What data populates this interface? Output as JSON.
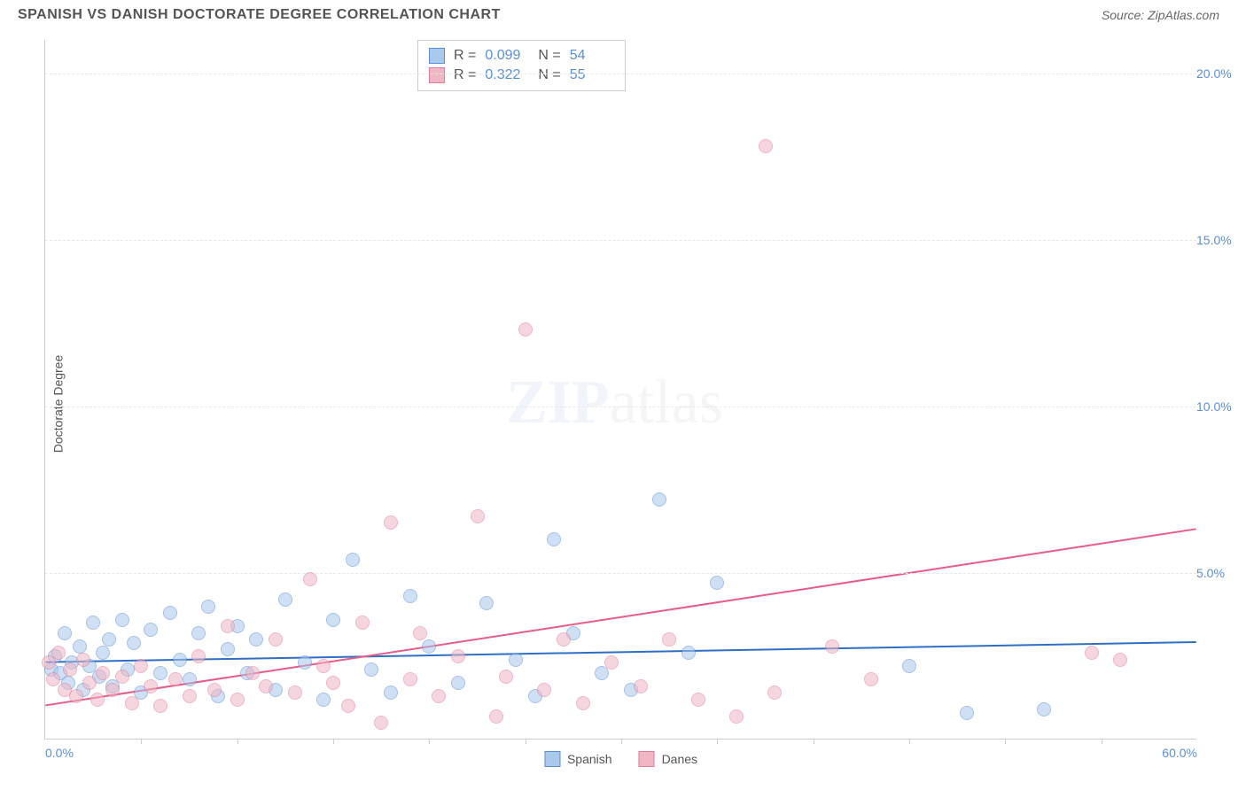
{
  "title": "SPANISH VS DANISH DOCTORATE DEGREE CORRELATION CHART",
  "source": "Source: ZipAtlas.com",
  "ylabel": "Doctorate Degree",
  "watermark": {
    "zip": "ZIP",
    "rest": "atlas"
  },
  "chart": {
    "type": "scatter",
    "xlim": [
      0,
      60
    ],
    "ylim": [
      0,
      21
    ],
    "xtick_labels": [
      "0.0%",
      "60.0%"
    ],
    "xtick_positions": [
      0,
      60
    ],
    "xtick_minor": [
      5,
      10,
      15,
      20,
      25,
      30,
      35,
      40,
      45,
      50,
      55
    ],
    "ytick_labels": [
      "5.0%",
      "10.0%",
      "15.0%",
      "20.0%"
    ],
    "ytick_positions": [
      5,
      10,
      15,
      20
    ],
    "grid_color": "#e8e8e8",
    "axis_color": "#cccccc",
    "background_color": "#ffffff",
    "point_radius": 8,
    "point_opacity": 0.55,
    "series": [
      {
        "name": "Spanish",
        "fill": "#a8c8ec",
        "stroke": "#5b8fd6",
        "trend_stroke": "#2e6fc6",
        "trend_width": 2,
        "trend_y0": 2.3,
        "trend_y1": 2.9,
        "R": "0.099",
        "N": "54",
        "points": [
          [
            0.3,
            2.1
          ],
          [
            0.5,
            2.5
          ],
          [
            0.8,
            2.0
          ],
          [
            1.0,
            3.2
          ],
          [
            1.2,
            1.7
          ],
          [
            1.4,
            2.3
          ],
          [
            1.8,
            2.8
          ],
          [
            2.0,
            1.5
          ],
          [
            2.3,
            2.2
          ],
          [
            2.5,
            3.5
          ],
          [
            2.8,
            1.9
          ],
          [
            3.0,
            2.6
          ],
          [
            3.3,
            3.0
          ],
          [
            3.5,
            1.6
          ],
          [
            4.0,
            3.6
          ],
          [
            4.3,
            2.1
          ],
          [
            4.6,
            2.9
          ],
          [
            5.0,
            1.4
          ],
          [
            5.5,
            3.3
          ],
          [
            6.0,
            2.0
          ],
          [
            6.5,
            3.8
          ],
          [
            7.0,
            2.4
          ],
          [
            7.5,
            1.8
          ],
          [
            8.0,
            3.2
          ],
          [
            8.5,
            4.0
          ],
          [
            9.0,
            1.3
          ],
          [
            9.5,
            2.7
          ],
          [
            10.0,
            3.4
          ],
          [
            10.5,
            2.0
          ],
          [
            11.0,
            3.0
          ],
          [
            12.0,
            1.5
          ],
          [
            12.5,
            4.2
          ],
          [
            13.5,
            2.3
          ],
          [
            14.5,
            1.2
          ],
          [
            15.0,
            3.6
          ],
          [
            16.0,
            5.4
          ],
          [
            17.0,
            2.1
          ],
          [
            18.0,
            1.4
          ],
          [
            19.0,
            4.3
          ],
          [
            20.0,
            2.8
          ],
          [
            21.5,
            1.7
          ],
          [
            23.0,
            4.1
          ],
          [
            24.5,
            2.4
          ],
          [
            25.5,
            1.3
          ],
          [
            26.5,
            6.0
          ],
          [
            27.5,
            3.2
          ],
          [
            29.0,
            2.0
          ],
          [
            30.5,
            1.5
          ],
          [
            32.0,
            7.2
          ],
          [
            33.5,
            2.6
          ],
          [
            35.0,
            4.7
          ],
          [
            45.0,
            2.2
          ],
          [
            48.0,
            0.8
          ],
          [
            52.0,
            0.9
          ]
        ]
      },
      {
        "name": "Danes",
        "fill": "#f0b6c4",
        "stroke": "#e27a98",
        "trend_stroke": "#e85c87",
        "trend_width": 2,
        "trend_y0": 1.0,
        "trend_y1": 6.3,
        "R": "0.322",
        "N": "55",
        "points": [
          [
            0.2,
            2.3
          ],
          [
            0.4,
            1.8
          ],
          [
            0.7,
            2.6
          ],
          [
            1.0,
            1.5
          ],
          [
            1.3,
            2.1
          ],
          [
            1.6,
            1.3
          ],
          [
            2.0,
            2.4
          ],
          [
            2.3,
            1.7
          ],
          [
            2.7,
            1.2
          ],
          [
            3.0,
            2.0
          ],
          [
            3.5,
            1.5
          ],
          [
            4.0,
            1.9
          ],
          [
            4.5,
            1.1
          ],
          [
            5.0,
            2.2
          ],
          [
            5.5,
            1.6
          ],
          [
            6.0,
            1.0
          ],
          [
            6.8,
            1.8
          ],
          [
            7.5,
            1.3
          ],
          [
            8.0,
            2.5
          ],
          [
            8.8,
            1.5
          ],
          [
            9.5,
            3.4
          ],
          [
            10.0,
            1.2
          ],
          [
            10.8,
            2.0
          ],
          [
            11.5,
            1.6
          ],
          [
            12.0,
            3.0
          ],
          [
            13.0,
            1.4
          ],
          [
            13.8,
            4.8
          ],
          [
            14.5,
            2.2
          ],
          [
            15.0,
            1.7
          ],
          [
            15.8,
            1.0
          ],
          [
            16.5,
            3.5
          ],
          [
            17.5,
            0.5
          ],
          [
            18.0,
            6.5
          ],
          [
            19.0,
            1.8
          ],
          [
            19.5,
            3.2
          ],
          [
            20.5,
            1.3
          ],
          [
            21.5,
            2.5
          ],
          [
            22.5,
            6.7
          ],
          [
            23.5,
            0.7
          ],
          [
            24.0,
            1.9
          ],
          [
            25.0,
            12.3
          ],
          [
            26.0,
            1.5
          ],
          [
            27.0,
            3.0
          ],
          [
            28.0,
            1.1
          ],
          [
            29.5,
            2.3
          ],
          [
            31.0,
            1.6
          ],
          [
            32.5,
            3.0
          ],
          [
            34.0,
            1.2
          ],
          [
            36.0,
            0.7
          ],
          [
            37.5,
            17.8
          ],
          [
            38.0,
            1.4
          ],
          [
            41.0,
            2.8
          ],
          [
            43.0,
            1.8
          ],
          [
            54.5,
            2.6
          ],
          [
            56.0,
            2.4
          ]
        ]
      }
    ]
  },
  "legend": {
    "items": [
      {
        "label": "Spanish",
        "fill": "#a8c8ec",
        "stroke": "#5b8fd6"
      },
      {
        "label": "Danes",
        "fill": "#f0b6c4",
        "stroke": "#e27a98"
      }
    ]
  }
}
